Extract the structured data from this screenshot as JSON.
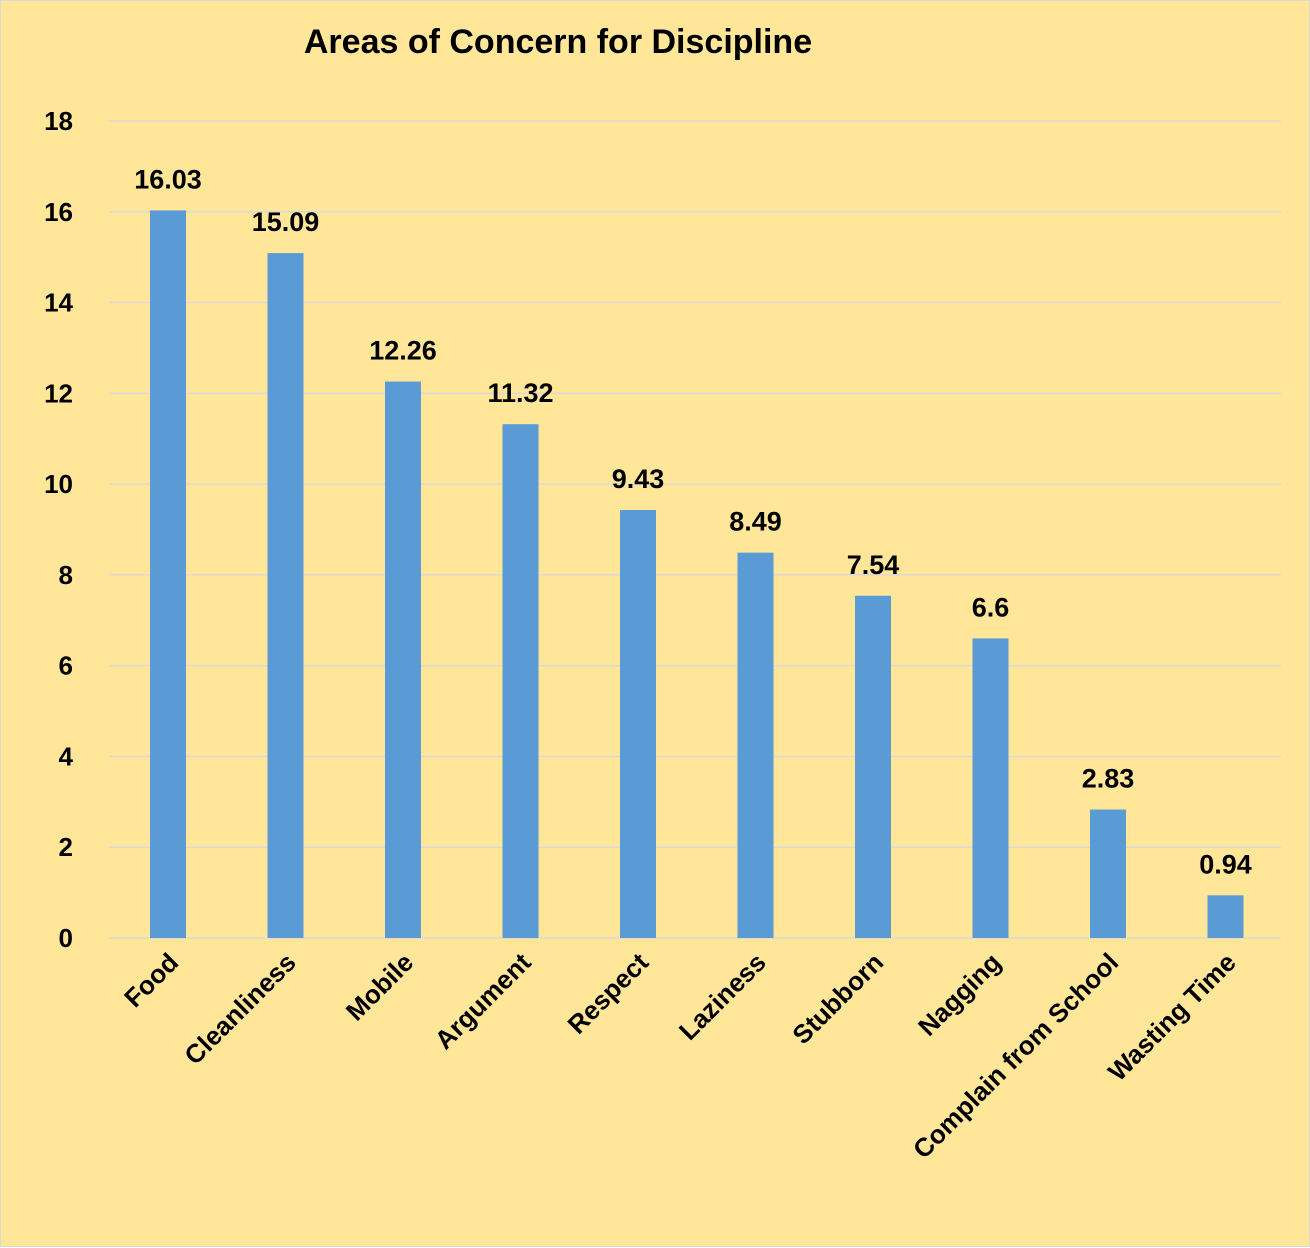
{
  "chart_data": {
    "type": "bar",
    "title": "Areas of Concern for Discipline",
    "xlabel": "",
    "ylabel": "",
    "categories": [
      "Food",
      "Cleanliness",
      "Mobile",
      "Argument",
      "Respect",
      "Laziness",
      "Stubborn",
      "Nagging",
      "Complain from School",
      "Wasting Time"
    ],
    "values": [
      16.03,
      15.09,
      12.26,
      11.32,
      9.43,
      8.49,
      7.54,
      6.6,
      2.83,
      0.94
    ],
    "data_labels": [
      "16.03",
      "15.09",
      "12.26",
      "11.32",
      "9.43",
      "8.49",
      "7.54",
      "6.6",
      "2.83",
      "0.94"
    ],
    "ylim": [
      0,
      18
    ],
    "yticks": [
      0,
      2,
      4,
      6,
      8,
      10,
      12,
      14,
      16,
      18
    ],
    "grid": true,
    "legend": "none",
    "colors": {
      "background": "#ffe699",
      "bar": "#5b9bd5",
      "gridline": "#d9d9d9",
      "text": "#000000"
    }
  }
}
